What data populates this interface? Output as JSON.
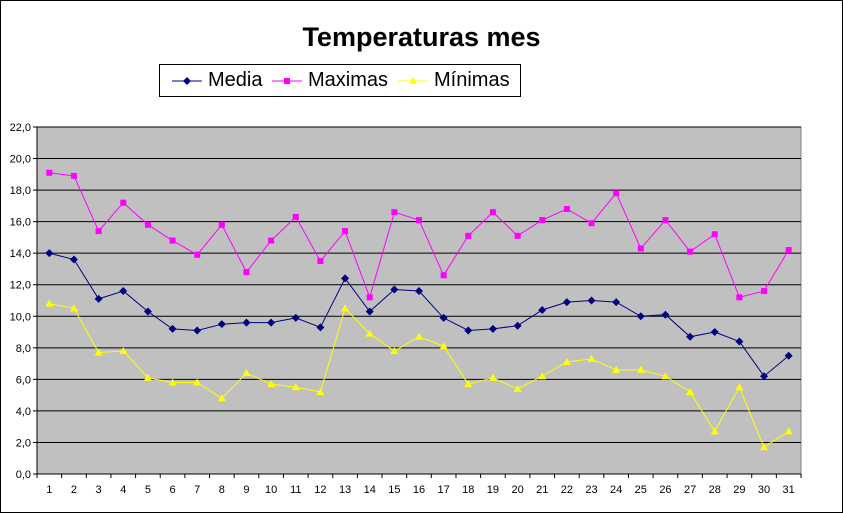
{
  "chart_data": {
    "type": "line",
    "title": "Temperaturas mes",
    "x": [
      1,
      2,
      3,
      4,
      5,
      6,
      7,
      8,
      9,
      10,
      11,
      12,
      13,
      14,
      15,
      16,
      17,
      18,
      19,
      20,
      21,
      22,
      23,
      24,
      25,
      26,
      27,
      28,
      29,
      30,
      31
    ],
    "ylim": [
      0,
      22
    ],
    "y_ticks": [
      "0,0",
      "2,0",
      "4,0",
      "6,0",
      "8,0",
      "10,0",
      "12,0",
      "14,0",
      "16,0",
      "18,0",
      "20,0",
      "22,0"
    ],
    "grid": true,
    "legend_position": "top",
    "plot_background": "#c0c0c0",
    "series": [
      {
        "name": "Media",
        "color": "#000080",
        "marker": "diamond",
        "values": [
          14.0,
          13.6,
          11.1,
          11.6,
          10.3,
          9.2,
          9.1,
          9.5,
          9.6,
          9.6,
          9.9,
          9.3,
          12.4,
          10.3,
          11.7,
          11.6,
          9.9,
          9.1,
          9.2,
          9.4,
          10.4,
          10.9,
          11.0,
          10.9,
          10.0,
          10.1,
          8.7,
          9.0,
          8.4,
          6.2,
          7.5
        ]
      },
      {
        "name": "Maximas",
        "color": "#ff00ff",
        "marker": "square",
        "values": [
          19.1,
          18.9,
          15.4,
          17.2,
          15.8,
          14.8,
          13.9,
          15.8,
          12.8,
          14.8,
          16.3,
          13.5,
          15.4,
          11.2,
          16.6,
          16.1,
          12.6,
          15.1,
          16.6,
          15.1,
          16.1,
          16.8,
          15.9,
          17.8,
          14.3,
          16.1,
          14.1,
          15.2,
          11.2,
          11.6,
          14.2
        ]
      },
      {
        "name": "Mínimas",
        "color": "#ffff00",
        "marker": "triangle",
        "values": [
          10.8,
          10.5,
          7.7,
          7.8,
          6.1,
          5.8,
          5.8,
          4.8,
          6.4,
          5.7,
          5.5,
          5.2,
          10.5,
          8.9,
          7.8,
          8.7,
          8.1,
          5.7,
          6.1,
          5.4,
          6.2,
          7.1,
          7.3,
          6.6,
          6.6,
          6.2,
          5.2,
          2.7,
          5.5,
          1.7,
          2.7
        ]
      }
    ]
  }
}
